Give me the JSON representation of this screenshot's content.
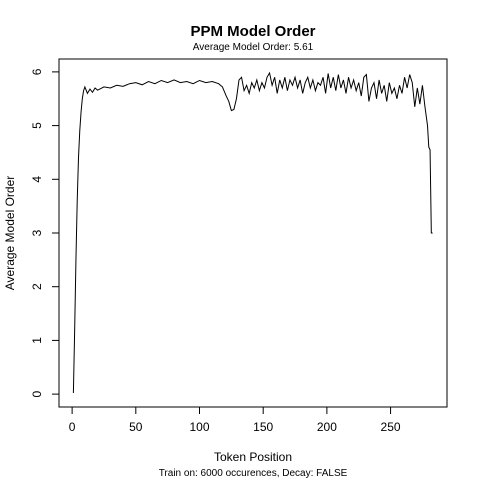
{
  "chart_data": {
    "type": "line",
    "title": "PPM Model Order",
    "subtitle": "Average Model Order: 5.61",
    "x_label": "Token Position",
    "y_label": "Average Model Order",
    "caption": "Train on: 6000 occurences, Decay: FALSE",
    "color": "#000000",
    "xlim": [
      -10.3,
      294.3
    ],
    "ylim": [
      -0.24,
      6.24
    ],
    "xticks": [
      0,
      50,
      100,
      150,
      200,
      250
    ],
    "yticks": [
      0,
      1,
      2,
      3,
      4,
      5,
      6
    ],
    "x": [
      1,
      2,
      3,
      4,
      5,
      6,
      7,
      8,
      9,
      10,
      12,
      14,
      16,
      18,
      20,
      25,
      30,
      35,
      40,
      45,
      50,
      55,
      60,
      65,
      70,
      75,
      80,
      85,
      90,
      95,
      100,
      105,
      110,
      115,
      118,
      121,
      123,
      125,
      127,
      129,
      131,
      133,
      135,
      137,
      139,
      141,
      143,
      145,
      147,
      149,
      151,
      153,
      155,
      157,
      159,
      161,
      163,
      165,
      167,
      169,
      171,
      173,
      175,
      177,
      179,
      181,
      183,
      185,
      187,
      189,
      191,
      193,
      195,
      197,
      199,
      201,
      203,
      205,
      207,
      209,
      211,
      213,
      215,
      217,
      219,
      221,
      223,
      225,
      227,
      229,
      231,
      233,
      235,
      237,
      239,
      241,
      243,
      245,
      247,
      249,
      251,
      253,
      255,
      257,
      259,
      261,
      263,
      265,
      267,
      269,
      271,
      273,
      275,
      277,
      279,
      280,
      281,
      282,
      283
    ],
    "values": [
      0.02,
      1.2,
      2.5,
      3.6,
      4.4,
      4.9,
      5.25,
      5.5,
      5.65,
      5.72,
      5.6,
      5.68,
      5.62,
      5.7,
      5.66,
      5.72,
      5.7,
      5.75,
      5.73,
      5.78,
      5.8,
      5.76,
      5.82,
      5.78,
      5.84,
      5.8,
      5.85,
      5.8,
      5.82,
      5.78,
      5.84,
      5.8,
      5.82,
      5.78,
      5.72,
      5.55,
      5.45,
      5.28,
      5.3,
      5.5,
      5.85,
      5.9,
      5.65,
      5.75,
      5.6,
      5.8,
      5.7,
      5.85,
      5.65,
      5.8,
      5.7,
      5.9,
      5.98,
      5.75,
      5.9,
      5.6,
      5.85,
      5.7,
      5.9,
      5.65,
      5.85,
      5.75,
      5.9,
      5.7,
      5.85,
      5.6,
      5.8,
      5.9,
      5.7,
      5.85,
      5.65,
      5.8,
      5.75,
      5.9,
      5.6,
      5.97,
      5.7,
      5.9,
      5.65,
      5.95,
      5.7,
      5.85,
      5.6,
      5.9,
      5.7,
      5.85,
      5.65,
      5.8,
      5.55,
      5.9,
      5.95,
      5.45,
      5.7,
      5.8,
      5.5,
      5.85,
      5.6,
      5.75,
      5.45,
      5.8,
      5.6,
      5.7,
      5.5,
      5.75,
      5.6,
      5.9,
      5.7,
      5.95,
      5.8,
      5.35,
      5.7,
      5.4,
      5.75,
      5.35,
      5.0,
      4.6,
      4.55,
      3.0,
      3.0
    ]
  }
}
